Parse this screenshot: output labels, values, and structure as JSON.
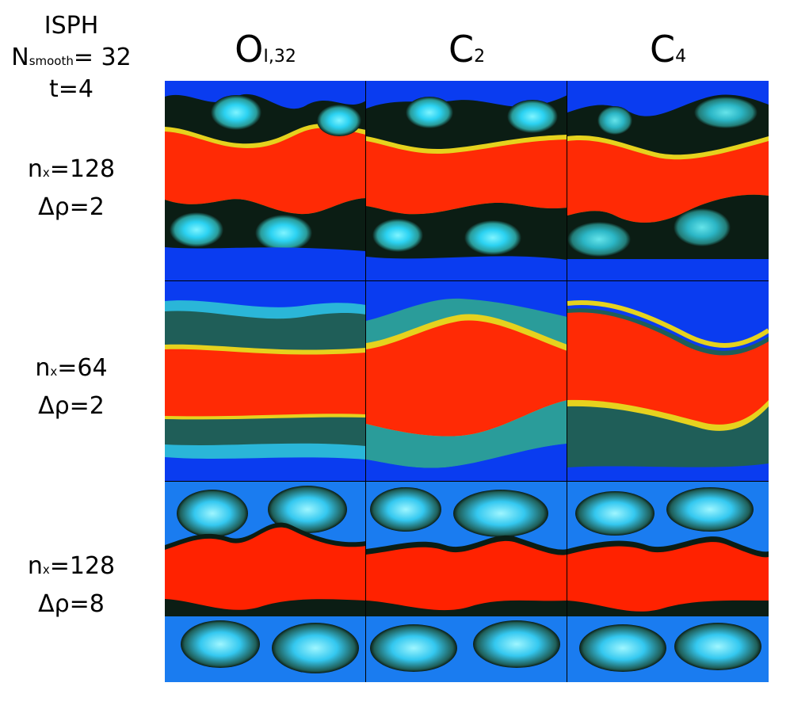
{
  "header": {
    "method": "ISPH",
    "nsmooth_prefix": "N",
    "nsmooth_sub": "smooth",
    "nsmooth_value": "= 32",
    "time": "t=4"
  },
  "columns": [
    {
      "main": "O",
      "sub": "I,32"
    },
    {
      "main": "C",
      "sub": "2"
    },
    {
      "main": "C",
      "sub": "4"
    }
  ],
  "rows": [
    {
      "n_prefix": "n",
      "n_sub": "x",
      "n_value": "=128",
      "drho": "Δρ=2"
    },
    {
      "n_prefix": "n",
      "n_sub": "x",
      "n_value": "=64",
      "drho": "Δρ=2"
    },
    {
      "n_prefix": "n",
      "n_sub": "x",
      "n_value": "=128",
      "drho": "Δρ=8"
    }
  ],
  "colors": {
    "background_blue": "#0a3cf0",
    "light_blue": "#22c8f0",
    "cyan": "#4fe6ee",
    "teal": "#2a8f8f",
    "dark": "#0b1d14",
    "yellow": "#e6d21e",
    "orange": "#ff5a12",
    "red": "#ff1e00"
  }
}
